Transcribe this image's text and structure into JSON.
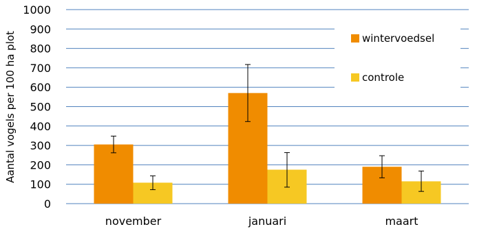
{
  "chart_data": {
    "type": "bar",
    "title": "",
    "xlabel": "",
    "ylabel": "Aantal vogels per 100 ha plot",
    "ylim": [
      0,
      1000
    ],
    "yticks": [
      0,
      100,
      200,
      300,
      400,
      500,
      600,
      700,
      800,
      900,
      1000
    ],
    "categories": [
      "november",
      "januari",
      "maart"
    ],
    "series": [
      {
        "name": "wintervoedsel",
        "color": "#F08C00",
        "values": [
          305,
          570,
          190
        ],
        "error_low": [
          262,
          423,
          133
        ],
        "error_high": [
          348,
          717,
          247
        ]
      },
      {
        "name": "controle",
        "color": "#F6C823",
        "values": [
          108,
          175,
          115
        ],
        "error_low": [
          72,
          85,
          63
        ],
        "error_high": [
          143,
          263,
          168
        ]
      }
    ],
    "grid": "horizontal",
    "gridline_color": "#4F81BD",
    "legend_position": "top-right"
  }
}
